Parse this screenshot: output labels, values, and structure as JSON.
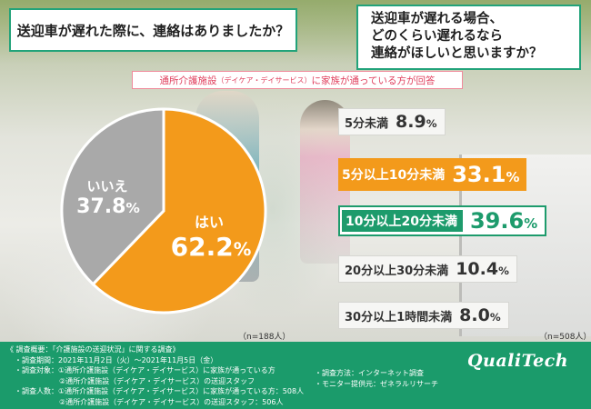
{
  "questions": {
    "q1": "送迎車が遅れた際に、連絡はありましたか？",
    "q2_lines": [
      "送迎車が遅れる場合、",
      "どのくらい遅れるなら",
      "連絡がほしいと思いますか？"
    ]
  },
  "respondents": {
    "main": "通所介護施設",
    "sub": "（デイケア・デイサービス）",
    "rest": "に家族が通っている方が回答"
  },
  "colors": {
    "accent_green": "#1d9b6c",
    "orange": "#f39a1b",
    "gray": "#a9a9a9"
  },
  "chart_data": [
    {
      "type": "pie",
      "categories": [
        "はい",
        "いいえ"
      ],
      "values": [
        62.2,
        37.8
      ],
      "display_values": [
        "62.2",
        "37.8"
      ],
      "unit": "%",
      "colors": [
        "#f39a1b",
        "#a9a9a9"
      ],
      "n": "（n=188人）"
    },
    {
      "type": "bar",
      "categories": [
        "5分未満",
        "5分以上10分未満",
        "10分以上20分未満",
        "20分以上30分未満",
        "30分以上1時間未満"
      ],
      "values": [
        8.9,
        33.1,
        39.6,
        10.4,
        8.0
      ],
      "display_values": [
        "8.9",
        "33.1",
        "39.6",
        "10.4",
        "8.0"
      ],
      "unit": "%",
      "n": "（n=508人）"
    }
  ],
  "footer": {
    "title": "《 調査概要：「介護施設の送迎状況」に関する調査》",
    "period": "・調査期間：2021年11月2日（火）〜2021年11月5日（金）",
    "target1": "・調査対象：①通所介護施設（デイケア・デイサービス）に家族が通っている方",
    "target2": "②通所介護施設（デイケア・デイサービス）の送迎スタッフ",
    "count1": "・調査人数：①通所介護施設（デイケア・デイサービス）に家族が通っている方：508人",
    "count2": "②通所介護施設（デイケア・デイサービス）の送迎スタッフ：506人",
    "method": "・調査方法：インターネット調査",
    "provider": "・モニター提供元：ゼネラルリサーチ",
    "logo": "QualiTech"
  }
}
